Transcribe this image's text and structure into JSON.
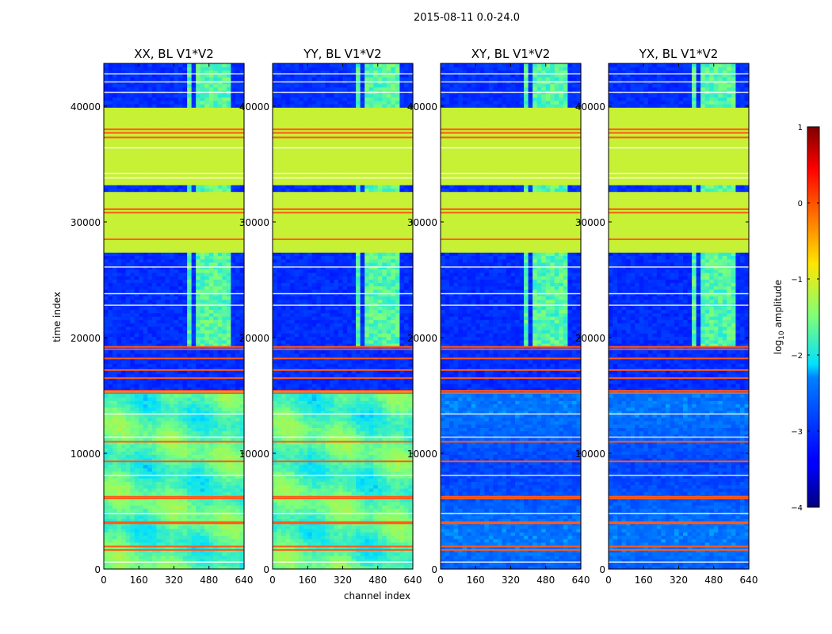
{
  "chart_data": {
    "type": "heatmap",
    "suptitle": "2015-08-11 0.0-24.0",
    "xlabel": "channel index",
    "ylabel": "time index",
    "xlim": [
      0,
      640
    ],
    "ylim": [
      0,
      43700
    ],
    "x_ticks": [
      0,
      160,
      320,
      480,
      640
    ],
    "y_ticks": [
      0,
      10000,
      20000,
      30000,
      40000
    ],
    "colorbar": {
      "label_main": "log",
      "label_sub": "10",
      "label_rest": " amplitude",
      "range": [
        -4,
        1
      ],
      "ticks": [
        1,
        0,
        -1,
        -2,
        -3,
        -4
      ],
      "colormap": "jet"
    },
    "panels": [
      {
        "title": "XX, BL V1*V2",
        "pol": "XX",
        "kind": "parallel"
      },
      {
        "title": "YY, BL V1*V2",
        "pol": "YY",
        "kind": "parallel"
      },
      {
        "title": "XY, BL V1*V2",
        "pol": "XY",
        "kind": "cross"
      },
      {
        "title": "YX, BL V1*V2",
        "pol": "YX",
        "kind": "cross"
      }
    ],
    "features": {
      "saturated_block_log10": -1.1,
      "saturated_time_ranges": [
        [
          27300,
          32700
        ],
        [
          33100,
          40000
        ]
      ],
      "rfi_channel_bands": [
        [
          385,
          400
        ],
        [
          430,
          445
        ],
        [
          470,
          485
        ],
        [
          520,
          535
        ],
        [
          560,
          575
        ]
      ],
      "rfi_time_ranges": [
        [
          19300,
          27300
        ],
        [
          32700,
          33100
        ],
        [
          40000,
          43700
        ]
      ],
      "flag_lines_time": [
        1650,
        1950,
        3950,
        4050,
        6100,
        6250,
        9300,
        11000,
        15200,
        15400,
        16500,
        17200,
        18200,
        19000,
        19200,
        28500,
        30800,
        31100,
        37300,
        37700,
        38000
      ],
      "white_lines_time": [
        600,
        4800,
        8100,
        11400,
        13400,
        22800,
        23800,
        26100,
        33800,
        34200,
        36400,
        41200,
        42100,
        42800
      ],
      "parallel_base_log10": -1.7,
      "cross_base_log10": -2.6
    }
  }
}
